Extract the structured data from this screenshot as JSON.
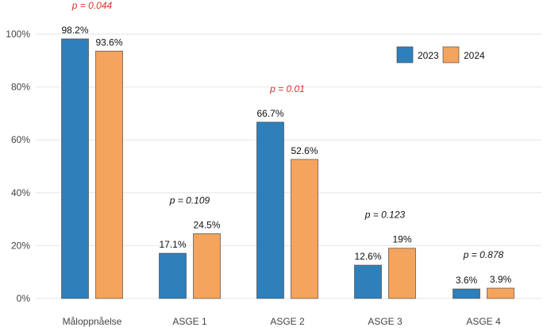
{
  "chart_data": {
    "type": "bar",
    "categories": [
      "Måloppnåelse",
      "ASGE 1",
      "ASGE 2",
      "ASGE 3",
      "ASGE 4"
    ],
    "series": [
      {
        "name": "2023",
        "color": "#2e7fba",
        "values": [
          98.2,
          17.1,
          66.7,
          12.6,
          3.6
        ],
        "labels": [
          "98.2%",
          "17.1%",
          "66.7%",
          "12.6%",
          "3.6%"
        ]
      },
      {
        "name": "2024",
        "color": "#f4a45d",
        "values": [
          93.6,
          24.5,
          52.6,
          19,
          3.9
        ],
        "labels": [
          "93.6%",
          "24.5%",
          "52.6%",
          "19%",
          "3.9%"
        ]
      }
    ],
    "p_values": [
      {
        "text": "p = 0.044",
        "significant": true
      },
      {
        "text": "p = 0.109",
        "significant": false
      },
      {
        "text": "p = 0.01",
        "significant": true
      },
      {
        "text": "p = 0.123",
        "significant": false
      },
      {
        "text": "p = 0.878",
        "significant": false
      }
    ],
    "p_value_colors": {
      "significant": "#e0302a",
      "not_significant": "#111111"
    },
    "ylim": [
      0,
      100
    ],
    "yticks": [
      0,
      20,
      40,
      60,
      80,
      100
    ],
    "ytick_labels": [
      "0%",
      "20%",
      "40%",
      "60%",
      "80%",
      "100%"
    ],
    "grid": true,
    "legend_position": "top-right",
    "title": "",
    "xlabel": "",
    "ylabel": ""
  }
}
